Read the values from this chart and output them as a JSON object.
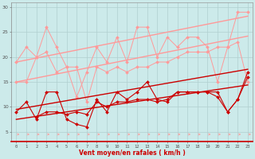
{
  "x": [
    0,
    1,
    2,
    3,
    4,
    5,
    6,
    7,
    8,
    9,
    10,
    11,
    12,
    13,
    14,
    15,
    16,
    17,
    18,
    19,
    20,
    21,
    22,
    23
  ],
  "y_light1": [
    19,
    22,
    20,
    26,
    22,
    18,
    12,
    17,
    22,
    19,
    24,
    19,
    26,
    26,
    20,
    24,
    22,
    24,
    24,
    22,
    15,
    22,
    29,
    29
  ],
  "y_light2": [
    15,
    15,
    20,
    21,
    17,
    18,
    18,
    11,
    18,
    17,
    18,
    17,
    18,
    18,
    19,
    19,
    20,
    21,
    21,
    21,
    22,
    22,
    23,
    15
  ],
  "y_trend_upper1": [
    19.0,
    19.4,
    19.8,
    20.2,
    20.6,
    21.0,
    21.4,
    21.8,
    22.2,
    22.6,
    23.0,
    23.4,
    23.8,
    24.2,
    24.6,
    25.0,
    25.4,
    25.8,
    26.2,
    26.6,
    27.0,
    27.4,
    27.8,
    28.2
  ],
  "y_trend_upper2": [
    15.0,
    15.4,
    15.8,
    16.2,
    16.6,
    17.0,
    17.4,
    17.8,
    18.2,
    18.6,
    19.0,
    19.4,
    19.8,
    20.2,
    20.6,
    21.0,
    21.4,
    21.8,
    22.2,
    22.6,
    23.0,
    23.4,
    23.8,
    24.2
  ],
  "y_dark1": [
    9,
    11,
    7.5,
    13,
    13,
    7.5,
    6.5,
    6,
    11.5,
    9,
    13,
    11.5,
    13,
    15,
    11.5,
    11,
    13,
    13,
    13,
    13,
    13,
    9,
    11.5,
    17
  ],
  "y_dark2": [
    null,
    null,
    8,
    9,
    9,
    8.5,
    9,
    8.5,
    11,
    10,
    11,
    11,
    11.5,
    11.5,
    11,
    11.5,
    13,
    13,
    13,
    13,
    12,
    9,
    11.5,
    16
  ],
  "y_trend_dark1": [
    9.5,
    9.85,
    10.2,
    10.55,
    10.9,
    11.25,
    11.6,
    11.95,
    12.3,
    12.65,
    13.0,
    13.35,
    13.7,
    14.05,
    14.4,
    14.75,
    15.1,
    15.45,
    15.8,
    16.15,
    16.5,
    16.85,
    17.2,
    17.55
  ],
  "y_trend_dark2": [
    7.5,
    7.8,
    8.1,
    8.4,
    8.7,
    9.0,
    9.3,
    9.6,
    9.9,
    10.2,
    10.5,
    10.8,
    11.1,
    11.4,
    11.7,
    12.0,
    12.3,
    12.6,
    12.9,
    13.2,
    13.5,
    13.8,
    14.1,
    14.4
  ],
  "bg_color": "#cceaea",
  "grid_color": "#b0d0d0",
  "light_color": "#ff9999",
  "dark_color": "#cc0000",
  "xlabel": "Vent moyen/en rafales ( km/h )",
  "ylim": [
    3,
    31
  ],
  "xlim": [
    -0.5,
    23.5
  ],
  "yticks": [
    5,
    10,
    15,
    20,
    25,
    30
  ],
  "xticks": [
    0,
    1,
    2,
    3,
    4,
    5,
    6,
    7,
    8,
    9,
    10,
    11,
    12,
    13,
    14,
    15,
    16,
    17,
    18,
    19,
    20,
    21,
    22,
    23
  ]
}
